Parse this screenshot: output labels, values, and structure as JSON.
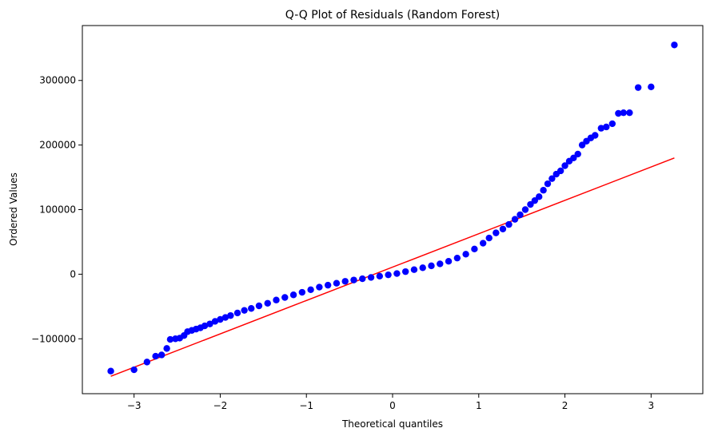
{
  "chart_data": {
    "type": "scatter",
    "title": "Q-Q Plot of Residuals (Random Forest)",
    "xlabel": "Theoretical quantiles",
    "ylabel": "Ordered Values",
    "xlim": [
      -3.6,
      3.6
    ],
    "ylim": [
      -185000,
      385000
    ],
    "x_ticks": [
      -3,
      -2,
      -1,
      0,
      1,
      2,
      3
    ],
    "x_tick_labels": [
      "−3",
      "−2",
      "−1",
      "0",
      "1",
      "2",
      "3"
    ],
    "y_ticks": [
      -100000,
      0,
      100000,
      200000,
      300000
    ],
    "y_tick_labels": [
      "−100000",
      "0",
      "100000",
      "200000",
      "300000"
    ],
    "grid": false,
    "legend": "none",
    "point_color": "#0000ff",
    "fit_line_color": "#ff0000",
    "fit_line": {
      "x": [
        -3.27,
        3.27
      ],
      "y": [
        -158000,
        180000
      ]
    },
    "points": {
      "x": [
        -3.27,
        -3.0,
        -2.85,
        -2.75,
        -2.68,
        -2.62,
        -2.58,
        -2.52,
        -2.47,
        -2.42,
        -2.38,
        -2.33,
        -2.28,
        -2.23,
        -2.18,
        -2.12,
        -2.06,
        -2.0,
        -1.94,
        -1.88,
        -1.8,
        -1.72,
        -1.64,
        -1.55,
        -1.45,
        -1.35,
        -1.25,
        -1.15,
        -1.05,
        -0.95,
        -0.85,
        -0.75,
        -0.65,
        -0.55,
        -0.45,
        -0.35,
        -0.25,
        -0.15,
        -0.05,
        0.05,
        0.15,
        0.25,
        0.35,
        0.45,
        0.55,
        0.65,
        0.75,
        0.85,
        0.95,
        1.05,
        1.12,
        1.2,
        1.28,
        1.35,
        1.42,
        1.48,
        1.54,
        1.6,
        1.65,
        1.7,
        1.75,
        1.8,
        1.85,
        1.9,
        1.95,
        2.0,
        2.05,
        2.1,
        2.15,
        2.2,
        2.25,
        2.3,
        2.35,
        2.42,
        2.48,
        2.55,
        2.62,
        2.68,
        2.75,
        2.85,
        3.0,
        3.27
      ],
      "y": [
        -150000,
        -148000,
        -136000,
        -127000,
        -125000,
        -115000,
        -101000,
        -100000,
        -99000,
        -95000,
        -89000,
        -87000,
        -85000,
        -83000,
        -80000,
        -77000,
        -73000,
        -70000,
        -67000,
        -64000,
        -60000,
        -56000,
        -53000,
        -49000,
        -45000,
        -40000,
        -36000,
        -32000,
        -28000,
        -24000,
        -20000,
        -17000,
        -14000,
        -11000,
        -9000,
        -7000,
        -5000,
        -3000,
        -1000,
        1000,
        4000,
        7000,
        10000,
        13000,
        16000,
        20000,
        25000,
        31000,
        39000,
        48000,
        56000,
        64000,
        70000,
        77000,
        85000,
        92000,
        100000,
        108000,
        114000,
        120000,
        130000,
        140000,
        148000,
        155000,
        160000,
        168000,
        175000,
        180000,
        186000,
        200000,
        206000,
        211000,
        215000,
        226000,
        228000,
        233000,
        249000,
        250000,
        250000,
        289000,
        290000,
        355000
      ]
    }
  }
}
